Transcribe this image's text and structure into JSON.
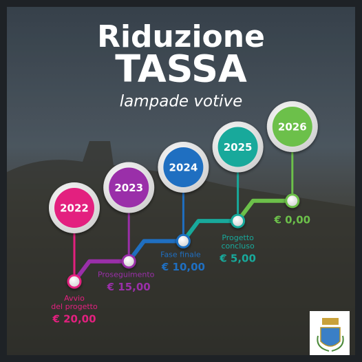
{
  "header": {
    "title": "Riduzione",
    "subtitle": "TASSA",
    "tagline": "lampade votive"
  },
  "steps": [
    {
      "year": "2022",
      "label": [
        "Avvio",
        "del progetto"
      ],
      "amount": "€ 20,00",
      "color": "#e3207f"
    },
    {
      "year": "2023",
      "label": [
        "Proseguimento"
      ],
      "amount": "€ 15,00",
      "color": "#9a2fa9"
    },
    {
      "year": "2024",
      "label": [
        "Fase finale"
      ],
      "amount": "€ 10,00",
      "color": "#1f6fc1"
    },
    {
      "year": "2025",
      "label": [
        "Progetto",
        "concluso"
      ],
      "amount": "€ 5,00",
      "color": "#18a99b"
    },
    {
      "year": "2026",
      "amount": "€ 0,00",
      "color": "#6cc04a"
    }
  ]
}
